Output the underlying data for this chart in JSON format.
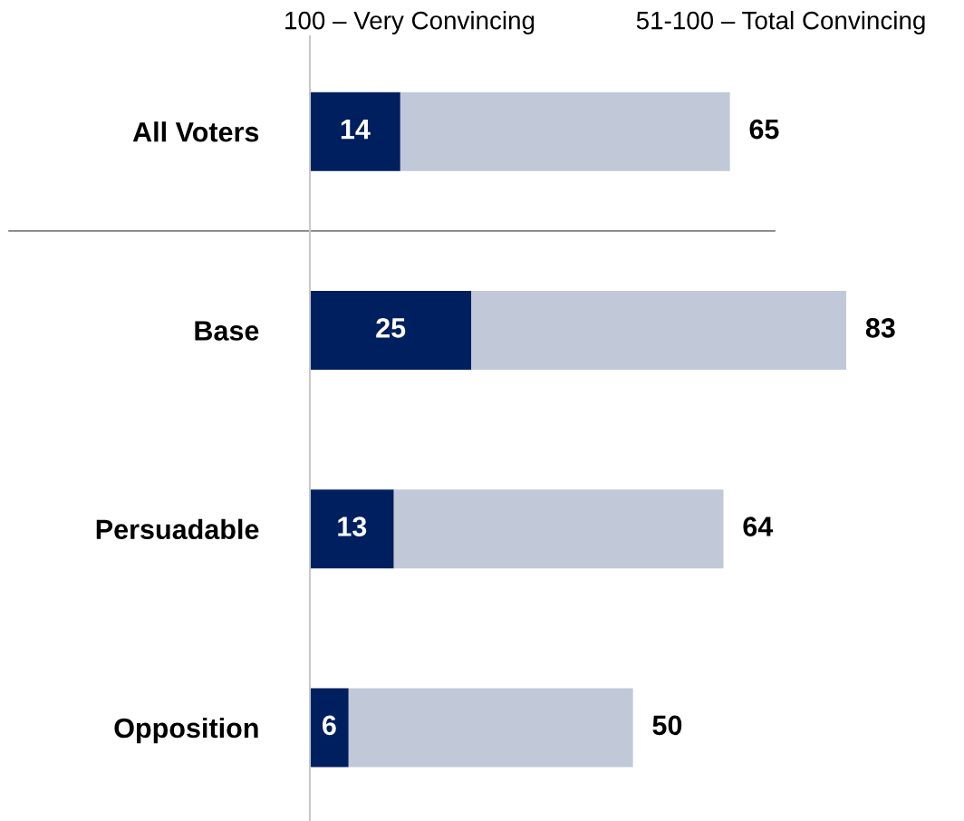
{
  "chart_data": {
    "type": "bar",
    "orientation": "horizontal",
    "stacked": true,
    "categories": [
      "All Voters",
      "Base",
      "Persuadable",
      "Opposition"
    ],
    "series": [
      {
        "name": "100 – Very Convincing",
        "color": "#001f5f",
        "values": [
          14,
          25,
          13,
          6
        ],
        "value_labels": [
          "14",
          "25",
          "13",
          "6"
        ]
      },
      {
        "name": "51-100 – Total Convincing",
        "color": "#c1c8d8",
        "values": [
          51,
          58,
          51,
          44
        ]
      }
    ],
    "totals": [
      "65",
      "83",
      "64",
      "50"
    ],
    "tick_labels": "y",
    "grid": false
  }
}
